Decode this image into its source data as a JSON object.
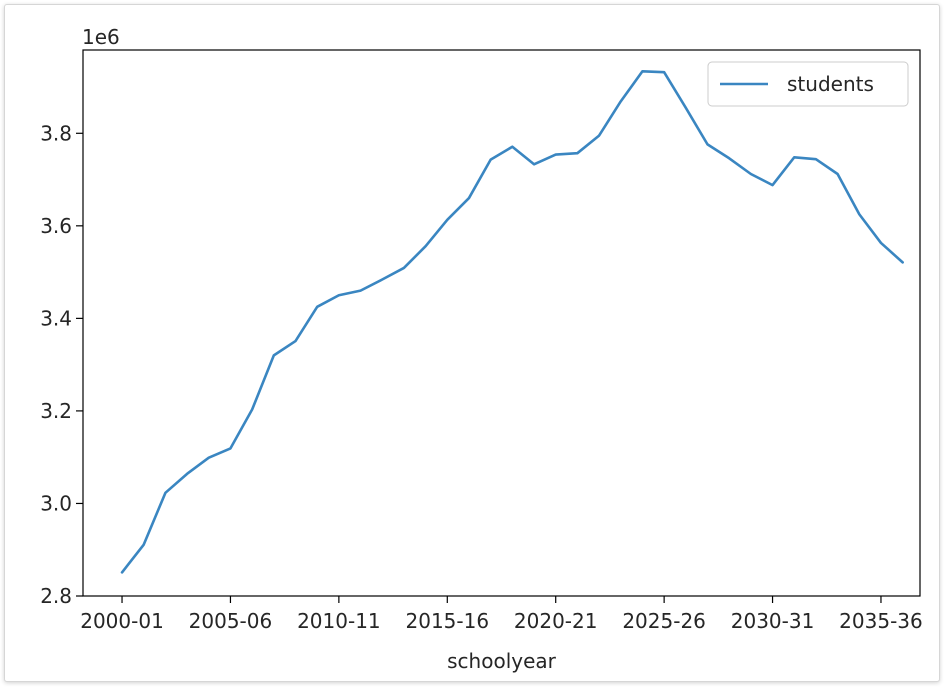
{
  "chart_data": {
    "type": "line",
    "xlabel": "schoolyear",
    "ylabel": "",
    "offset_label": "1e6",
    "x_tick_labels": [
      "2000-01",
      "2005-06",
      "2010-11",
      "2015-16",
      "2020-21",
      "2025-26",
      "2030-31",
      "2035-36"
    ],
    "y_tick_labels": [
      "2.8",
      "3.0",
      "3.2",
      "3.4",
      "3.6",
      "3.8"
    ],
    "y_ticks": [
      2.8,
      3.0,
      3.2,
      3.4,
      3.6,
      3.8
    ],
    "ylim": [
      2.8,
      3.98
    ],
    "xlim": [
      -1.8,
      36.8
    ],
    "grid": false,
    "legend": {
      "placement": "top-right"
    },
    "colors": {
      "line": "#3a86c1",
      "axis": "#000000"
    },
    "series": [
      {
        "name": "students",
        "x": [
          "2000-01",
          "2001-02",
          "2002-03",
          "2003-04",
          "2004-05",
          "2005-06",
          "2006-07",
          "2007-08",
          "2008-09",
          "2009-10",
          "2010-11",
          "2011-12",
          "2012-13",
          "2013-14",
          "2014-15",
          "2015-16",
          "2016-17",
          "2017-18",
          "2018-19",
          "2019-20",
          "2020-21",
          "2021-22",
          "2022-23",
          "2023-24",
          "2024-25",
          "2025-26",
          "2026-27",
          "2027-28",
          "2028-29",
          "2029-30",
          "2030-31",
          "2031-32",
          "2032-33",
          "2033-34",
          "2034-35",
          "2035-36",
          "2036-37"
        ],
        "values": [
          2.851,
          2.911,
          3.023,
          3.064,
          3.099,
          3.119,
          3.203,
          3.32,
          3.351,
          3.425,
          3.45,
          3.46,
          3.484,
          3.509,
          3.556,
          3.613,
          3.66,
          3.743,
          3.771,
          3.733,
          3.754,
          3.757,
          3.795,
          3.869,
          3.934,
          3.932,
          3.855,
          3.776,
          3.746,
          3.712,
          3.688,
          3.748,
          3.744,
          3.712,
          3.625,
          3.563,
          3.521
        ]
      }
    ]
  }
}
